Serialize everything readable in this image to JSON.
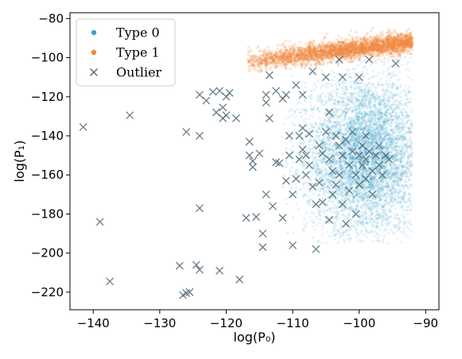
{
  "chart_data": {
    "type": "scatter",
    "xlabel": "log(P₀)",
    "ylabel": "log(P₁)",
    "xlim": [
      -143.5,
      -88
    ],
    "ylim": [
      -229,
      -77
    ],
    "x_ticks": [
      -140,
      -130,
      -120,
      -110,
      -100,
      -90
    ],
    "y_ticks": [
      -80,
      -100,
      -120,
      -140,
      -160,
      -180,
      -200,
      -220
    ],
    "x_tick_labels": [
      "−140",
      "−130",
      "−120",
      "−110",
      "−100",
      "−90"
    ],
    "y_tick_labels": [
      "−80",
      "−100",
      "−120",
      "−140",
      "−160",
      "−180",
      "−200",
      "−220"
    ],
    "grid": false,
    "legend_position": "top-left",
    "series": [
      {
        "name": "Type 0",
        "marker": "dot",
        "color": "#3ba3c9",
        "distribution": {
          "description": "dense cloud",
          "x_center": -99,
          "y_center": -150,
          "x_spread": 4.5,
          "y_spread": 20,
          "x_range": [
            -112,
            -92
          ],
          "y_range": [
            -195,
            -100
          ],
          "approx_count": 6000
        }
      },
      {
        "name": "Type 1",
        "marker": "dot",
        "color": "#f0873f",
        "distribution": {
          "description": "dense band",
          "x_range": [
            -117,
            -92
          ],
          "y_at_x_min": -102,
          "y_at_x_max": -92,
          "y_spread": 2.5,
          "approx_count": 3000
        }
      },
      {
        "name": "Outlier",
        "marker": "x",
        "color": "#4d6673",
        "points": [
          [
            -141.5,
            -135.5
          ],
          [
            -139,
            -184
          ],
          [
            -137.5,
            -214.5
          ],
          [
            -134.5,
            -129.5
          ],
          [
            -127,
            -206.5
          ],
          [
            -126.5,
            -221.5
          ],
          [
            -126,
            -138
          ],
          [
            -126,
            -220.5
          ],
          [
            -125.5,
            -220
          ],
          [
            -124.5,
            -206
          ],
          [
            -124,
            -208.5
          ],
          [
            -124,
            -177
          ],
          [
            -124,
            -140
          ],
          [
            -124,
            -119
          ],
          [
            -123,
            -122
          ],
          [
            -122,
            -117.5
          ],
          [
            -121.5,
            -128
          ],
          [
            -121,
            -209
          ],
          [
            -121,
            -117
          ],
          [
            -120.5,
            -125.5
          ],
          [
            -120.5,
            -131
          ],
          [
            -120,
            -120
          ],
          [
            -120,
            -129.5
          ],
          [
            -119.5,
            -118
          ],
          [
            -118.5,
            -131
          ],
          [
            -118,
            -213.5
          ],
          [
            -117,
            -182
          ],
          [
            -116.5,
            -143
          ],
          [
            -116.5,
            -150
          ],
          [
            -116,
            -153
          ],
          [
            -116,
            -156
          ],
          [
            -115.5,
            -181.5
          ],
          [
            -115,
            -149
          ],
          [
            -114.5,
            -190
          ],
          [
            -114.5,
            -197
          ],
          [
            -114,
            -119
          ],
          [
            -114,
            -123
          ],
          [
            -114,
            -170
          ],
          [
            -113.5,
            -109
          ],
          [
            -113.5,
            -131
          ],
          [
            -113,
            -176
          ],
          [
            -112.5,
            -117
          ],
          [
            -112.5,
            -153.5
          ],
          [
            -112,
            -154
          ],
          [
            -111.5,
            -121
          ],
          [
            -111.5,
            -182
          ],
          [
            -111,
            -119
          ],
          [
            -111,
            -163
          ],
          [
            -110.5,
            -140
          ],
          [
            -110.5,
            -150
          ],
          [
            -110,
            -170
          ],
          [
            -110,
            -196
          ],
          [
            -109.5,
            -114
          ],
          [
            -109.5,
            -162
          ],
          [
            -109,
            -140
          ],
          [
            -109,
            -152
          ],
          [
            -108.5,
            -119
          ],
          [
            -108.5,
            -136
          ],
          [
            -108.5,
            -147
          ],
          [
            -108,
            -150
          ],
          [
            -108,
            -160
          ],
          [
            -107.5,
            -139
          ],
          [
            -107.5,
            -155
          ],
          [
            -107,
            -107
          ],
          [
            -107,
            -166
          ],
          [
            -106.5,
            -175
          ],
          [
            -106.5,
            -198
          ],
          [
            -106,
            -145
          ],
          [
            -106,
            -164
          ],
          [
            -105.5,
            -149
          ],
          [
            -105.5,
            -174
          ],
          [
            -105,
            -110
          ],
          [
            -105,
            -138
          ],
          [
            -104.5,
            -128
          ],
          [
            -104.5,
            -152
          ],
          [
            -104.5,
            -183
          ],
          [
            -104,
            -158
          ],
          [
            -104,
            -170
          ],
          [
            -103.5,
            -140
          ],
          [
            -103.5,
            -165
          ],
          [
            -103,
            -101
          ],
          [
            -103,
            -145
          ],
          [
            -103,
            -160
          ],
          [
            -102.5,
            -110
          ],
          [
            -102.5,
            -150
          ],
          [
            -102.5,
            -175
          ],
          [
            -102,
            -185
          ],
          [
            -102,
            -142
          ],
          [
            -101.5,
            -155
          ],
          [
            -101.5,
            -168
          ],
          [
            -101,
            -138
          ],
          [
            -101,
            -148
          ],
          [
            -100.5,
            -160
          ],
          [
            -100.5,
            -180
          ],
          [
            -100,
            -110
          ],
          [
            -100,
            -150
          ],
          [
            -100,
            -165
          ],
          [
            -99.5,
            -145
          ],
          [
            -99.5,
            -155
          ],
          [
            -99,
            -140
          ],
          [
            -99,
            -152
          ],
          [
            -99,
            -162
          ],
          [
            -98.5,
            -101
          ],
          [
            -98.5,
            -148
          ],
          [
            -98,
            -158
          ],
          [
            -98,
            -170
          ],
          [
            -97.5,
            -150
          ],
          [
            -97,
            -145
          ],
          [
            -97,
            -155
          ],
          [
            -96.5,
            -160
          ],
          [
            -96,
            -150
          ],
          [
            -95.5,
            -152
          ],
          [
            -94.5,
            -103
          ]
        ]
      }
    ]
  }
}
